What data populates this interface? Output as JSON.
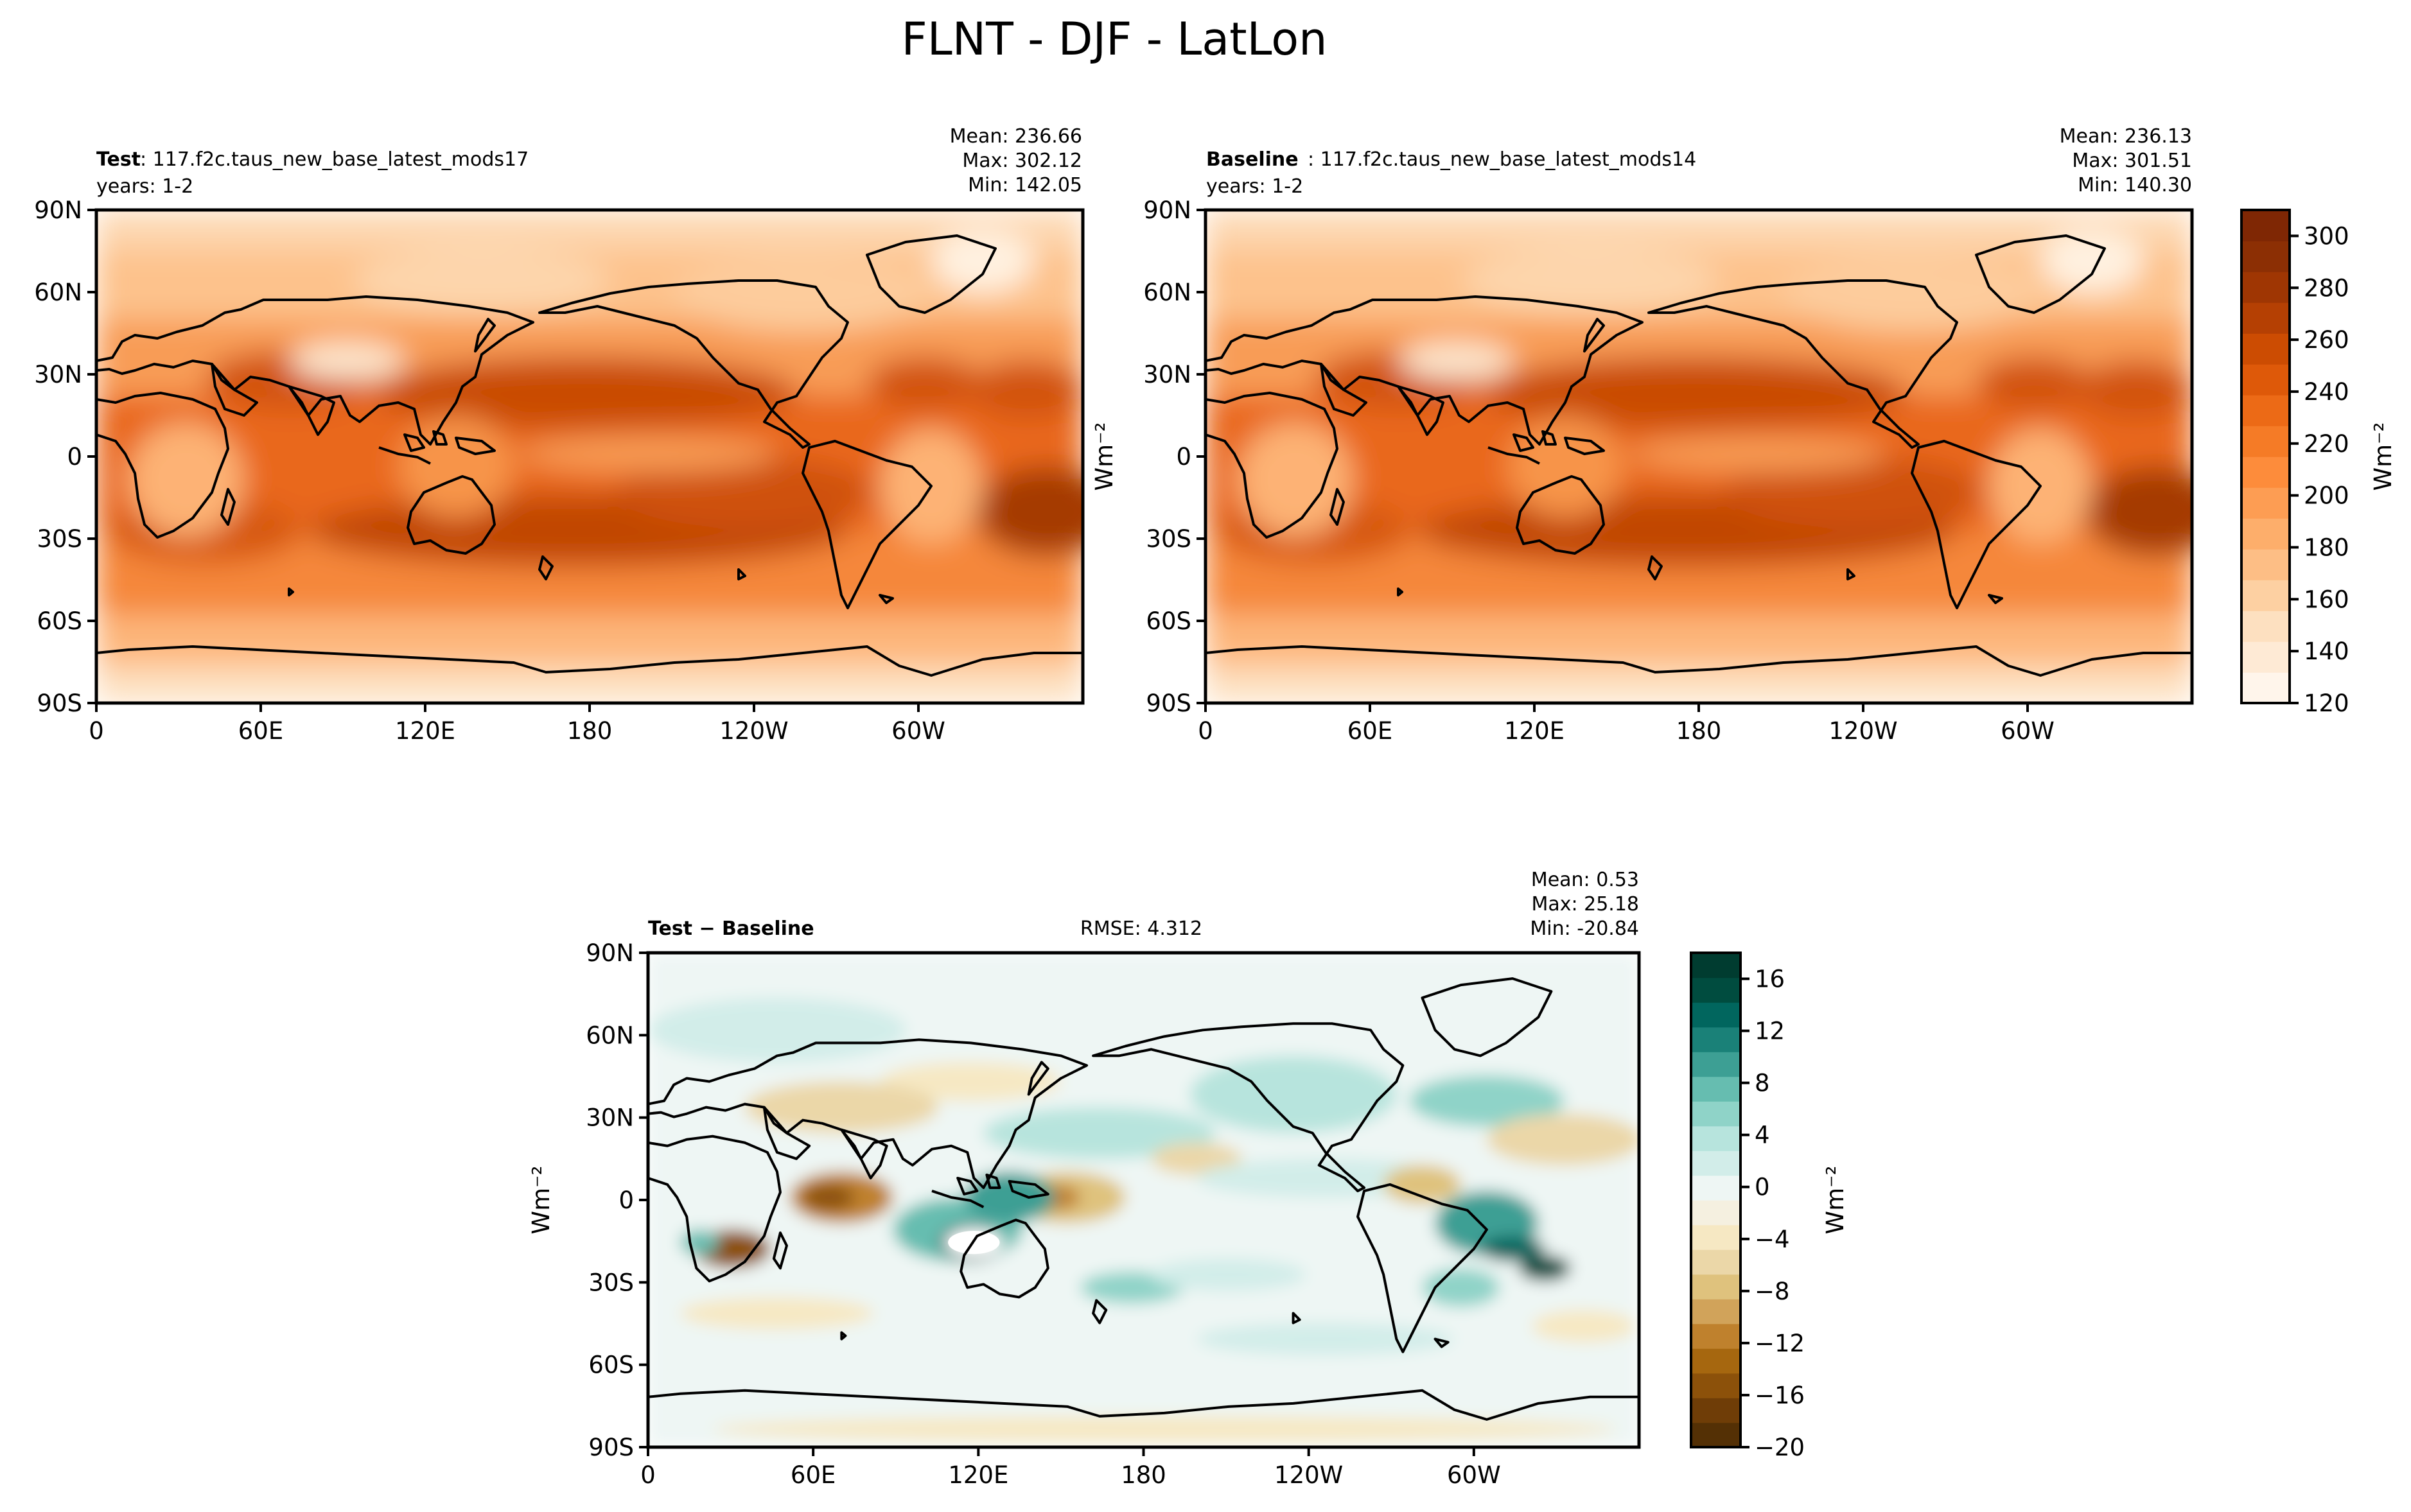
{
  "figure_title": "FLNT - DJF - LatLon",
  "chart_data": [
    {
      "type": "heatmap",
      "panel": "test",
      "title_left_bold": "Test",
      "title_left_name": ": 117.f2c.taus_new_base_latest_mods17",
      "title_left_years": "years: 1-2",
      "stats": {
        "mean": "Mean: 236.66",
        "max": "Max: 302.12",
        "min": "Min: 142.05"
      },
      "x_ticks": [
        "0",
        "60E",
        "120E",
        "180",
        "120W",
        "60W"
      ],
      "y_ticks": [
        "90N",
        "60N",
        "30N",
        "0",
        "30S",
        "60S",
        "90S"
      ],
      "xlim": [
        0,
        360
      ],
      "ylim": [
        -90,
        90
      ],
      "colormap": "Oranges"
    },
    {
      "type": "heatmap",
      "panel": "baseline",
      "title_left_bold": "Baseline",
      "title_left_name": ": 117.f2c.taus_new_base_latest_mods14",
      "title_left_years": "years: 1-2",
      "stats": {
        "mean": "Mean: 236.13",
        "max": "Max: 301.51",
        "min": "Min: 140.30"
      },
      "x_ticks": [
        "0",
        "60E",
        "120E",
        "180",
        "120W",
        "60W"
      ],
      "y_ticks": [
        "90N",
        "60N",
        "30N",
        "0",
        "30S",
        "60S",
        "90S"
      ],
      "xlim": [
        0,
        360
      ],
      "ylim": [
        -90,
        90
      ],
      "colormap": "Oranges"
    },
    {
      "type": "heatmap",
      "panel": "difference",
      "title_left_bold": "Test − Baseline",
      "title_center": "RMSE: 4.312",
      "stats": {
        "mean": "Mean:  0.53",
        "max": "Max: 25.18",
        "min": "Min: -20.84"
      },
      "x_ticks": [
        "0",
        "60E",
        "120E",
        "180",
        "120W",
        "60W"
      ],
      "y_ticks": [
        "90N",
        "60N",
        "30N",
        "0",
        "30S",
        "60S",
        "90S"
      ],
      "xlim": [
        0,
        360
      ],
      "ylim": [
        -90,
        90
      ],
      "colormap": "BrBG"
    }
  ],
  "colorbar_main": {
    "ticks": [
      "120",
      "140",
      "160",
      "180",
      "200",
      "220",
      "240",
      "260",
      "280",
      "300"
    ],
    "values": [
      120,
      140,
      160,
      180,
      200,
      220,
      240,
      260,
      280,
      300
    ],
    "range": [
      120,
      310
    ],
    "colors": [
      "#fff5eb",
      "#feead5",
      "#fde0c0",
      "#fdd0a2",
      "#fdbe85",
      "#fdae6b",
      "#fd9d53",
      "#fd8c3b",
      "#f57b26",
      "#ec6a16",
      "#de5909",
      "#cc4c02",
      "#b54003",
      "#9f3603",
      "#8c2f04",
      "#7f2704"
    ]
  },
  "colorbar_diff": {
    "ticks": [
      "16",
      "12",
      "8",
      "4",
      "0",
      "−4",
      "−8",
      "−12",
      "−16",
      "−20"
    ],
    "values": [
      16,
      12,
      8,
      4,
      0,
      -4,
      -8,
      -12,
      -16,
      -20
    ],
    "range": [
      -20,
      18
    ],
    "colors": [
      "#543005",
      "#6f3d07",
      "#8c510a",
      "#a6670f",
      "#bf812d",
      "#d1a35a",
      "#dfc27d",
      "#ebd7a8",
      "#f6e8c3",
      "#f5f0e0",
      "#eef6f4",
      "#d2ede9",
      "#b7e4dd",
      "#8fd3c8",
      "#66bdb0",
      "#3d9f94",
      "#1a8178",
      "#01665e",
      "#004c3f",
      "#003c30"
    ]
  },
  "unit_label": "Wm⁻²"
}
